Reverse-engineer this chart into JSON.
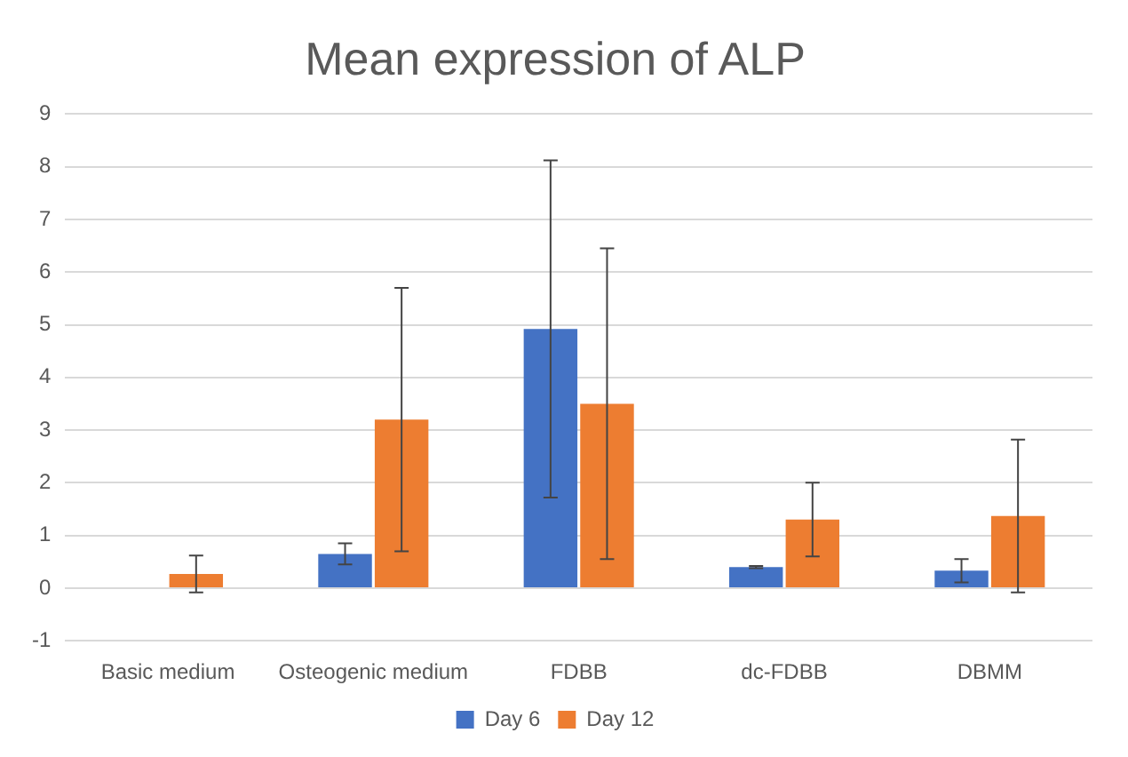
{
  "chart_data": {
    "type": "bar",
    "title": "Mean expression of ALP",
    "categories": [
      "Basic medium",
      "Osteogenic medium",
      "FDBB",
      "dc-FDBB",
      "DBMM"
    ],
    "series": [
      {
        "name": "Day 6",
        "color": "#4472c4",
        "values": [
          null,
          0.65,
          4.92,
          0.4,
          0.33
        ],
        "errors": [
          null,
          0.2,
          3.2,
          0.02,
          0.22
        ]
      },
      {
        "name": "Day 12",
        "color": "#ed7d31",
        "values": [
          0.27,
          3.2,
          3.5,
          1.3,
          1.37
        ],
        "errors": [
          0.35,
          2.5,
          2.95,
          0.7,
          1.45
        ]
      }
    ],
    "ylim": [
      -1,
      9
    ],
    "yticks": [
      -1,
      0,
      1,
      2,
      3,
      4,
      5,
      6,
      7,
      8,
      9
    ],
    "grid": "y",
    "legend": "bottom"
  }
}
